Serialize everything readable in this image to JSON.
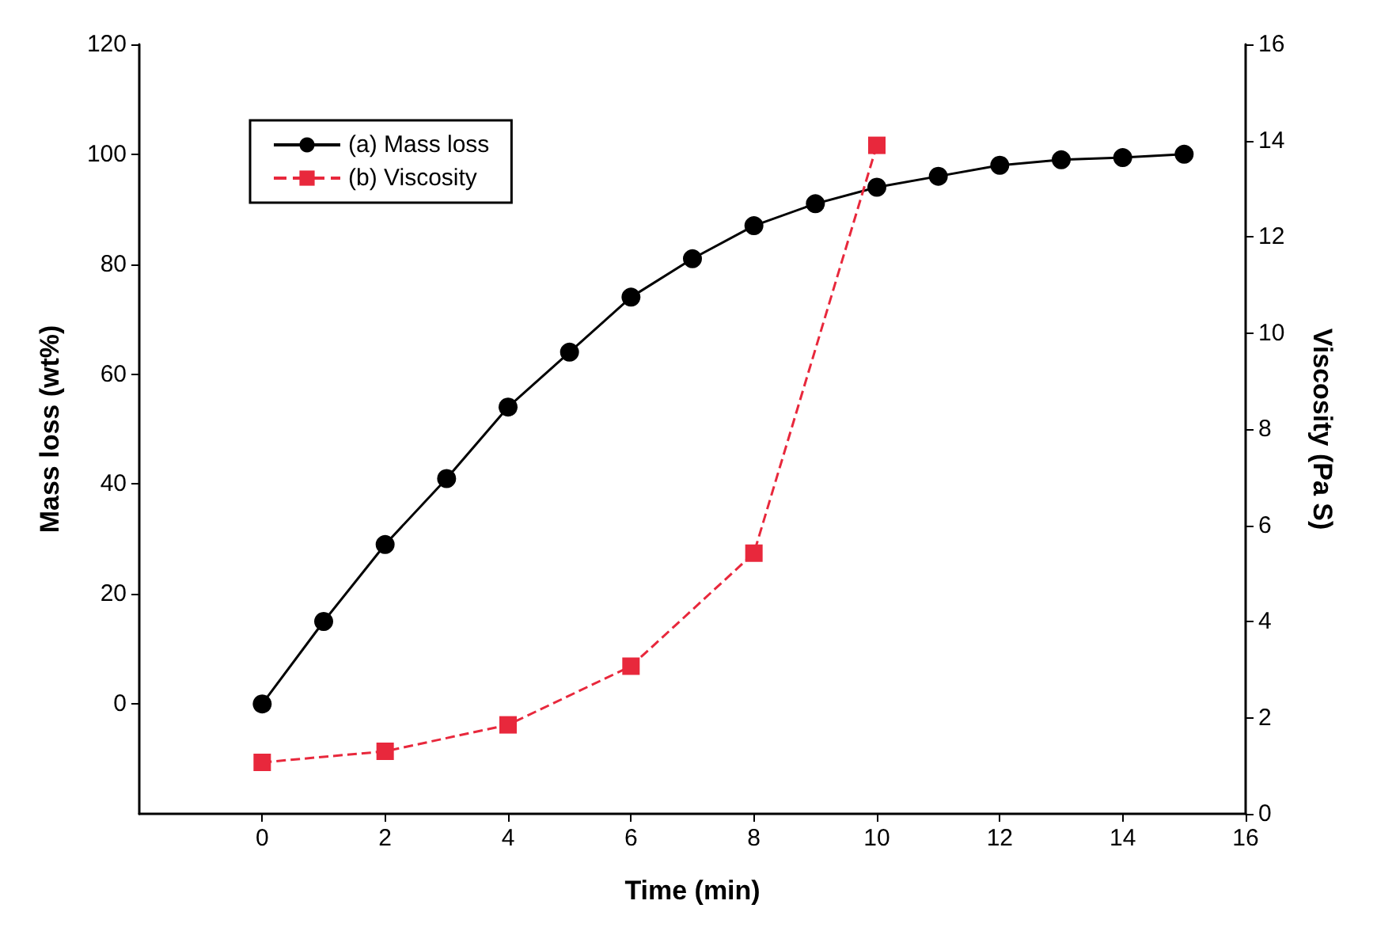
{
  "chart_data": {
    "type": "line",
    "xlabel": "Time (min)",
    "ylabel": "Mass loss (wt%)",
    "y2label": "Viscosity (Pa S)",
    "xlim": [
      -2,
      16
    ],
    "xticks": [
      0,
      2,
      4,
      6,
      8,
      10,
      12,
      14,
      16
    ],
    "ylim": [
      -20,
      120
    ],
    "yticks": [
      0,
      20,
      40,
      60,
      80,
      100,
      120
    ],
    "y2lim": [
      0,
      16
    ],
    "y2ticks": [
      0,
      2,
      4,
      6,
      8,
      10,
      12,
      14,
      16
    ],
    "legend": "top left",
    "grid": false,
    "series": [
      {
        "name": "(a) Mass loss",
        "color": "#000000",
        "marker": "circle",
        "line_style": "solid",
        "x": [
          0,
          1,
          2,
          3,
          4,
          5,
          6,
          7,
          8,
          9,
          10,
          11,
          12,
          13,
          14,
          15
        ],
        "values": [
          0,
          15,
          29,
          41,
          54,
          64,
          74,
          81,
          87,
          91,
          94,
          96,
          98,
          99,
          99.4,
          100
        ]
      },
      {
        "name": "(b) Viscosity",
        "color": "#e8283c",
        "marker": "square",
        "line_style": "dashed",
        "axis": "y2",
        "x": [
          0,
          2,
          4,
          6,
          8,
          10
        ],
        "values": [
          1.07,
          1.3,
          1.85,
          3.07,
          5.42,
          13.9
        ]
      }
    ]
  }
}
